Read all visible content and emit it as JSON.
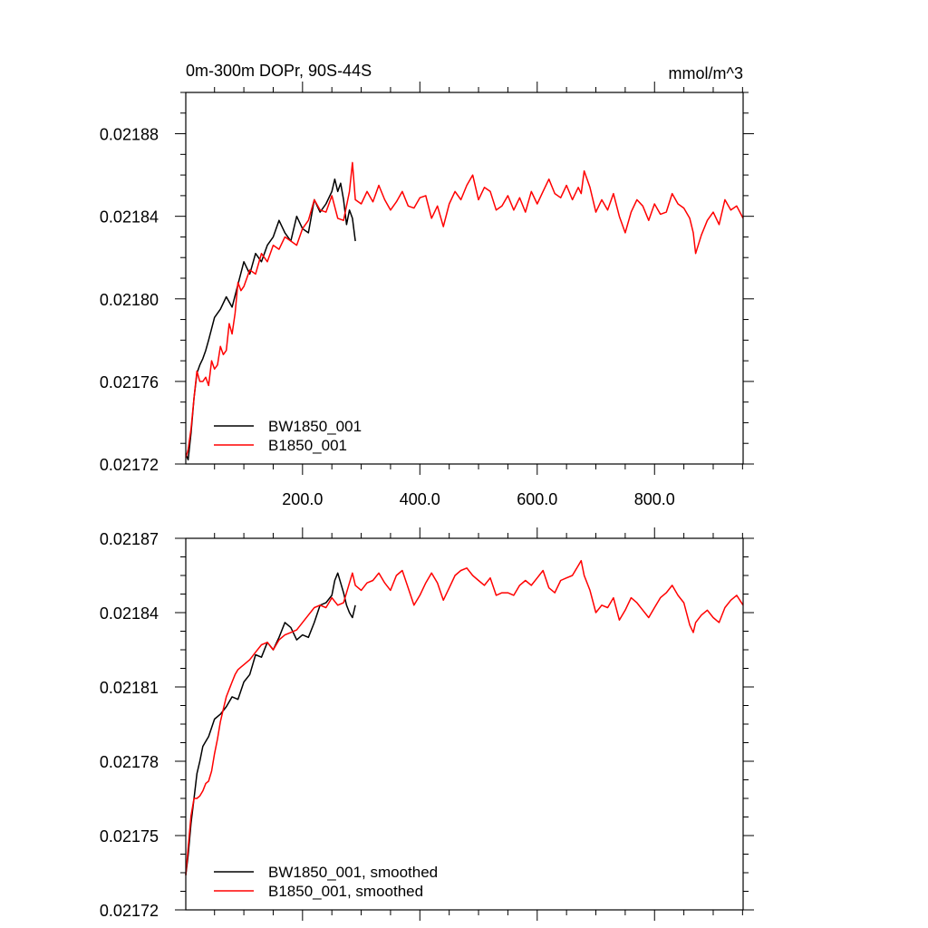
{
  "chart_data": [
    {
      "type": "line",
      "title": "0m-300m DOPr, 90S-44S",
      "units": "mmol/m^3",
      "xlim": [
        1,
        951
      ],
      "ylim": [
        0.02172,
        0.0219
      ],
      "x_ticks": [
        200,
        400,
        600,
        800
      ],
      "x_tick_labels": [
        "200.0",
        "400.0",
        "600.0",
        "800.0"
      ],
      "y_ticks": [
        0.02172,
        0.02176,
        0.0218,
        0.02184,
        0.02188
      ],
      "y_tick_labels": [
        "0.02172",
        "0.02176",
        "0.02180",
        "0.02184",
        "0.02188"
      ],
      "legend_position": "bottom-left",
      "series": [
        {
          "name": "BW1850_001",
          "color": "#000000",
          "x": [
            1,
            5,
            10,
            15,
            20,
            25,
            30,
            35,
            40,
            50,
            60,
            70,
            80,
            90,
            100,
            110,
            120,
            130,
            140,
            150,
            160,
            170,
            180,
            190,
            200,
            210,
            220,
            230,
            240,
            250,
            255,
            260,
            265,
            270,
            275,
            280,
            285,
            290
          ],
          "y": [
            0.021725,
            0.021722,
            0.021735,
            0.021752,
            0.021764,
            0.021768,
            0.021771,
            0.021775,
            0.02178,
            0.021791,
            0.021795,
            0.021801,
            0.021796,
            0.021807,
            0.021818,
            0.021812,
            0.021822,
            0.021818,
            0.021826,
            0.02183,
            0.021838,
            0.021832,
            0.021828,
            0.02184,
            0.021834,
            0.021832,
            0.021848,
            0.021842,
            0.021846,
            0.021852,
            0.021858,
            0.021852,
            0.021856,
            0.021848,
            0.021836,
            0.021843,
            0.021839,
            0.021828
          ]
        },
        {
          "name": "B1850_001",
          "color": "#ff0000",
          "x": [
            1,
            5,
            10,
            15,
            20,
            25,
            30,
            35,
            40,
            45,
            50,
            55,
            60,
            65,
            70,
            75,
            80,
            85,
            90,
            95,
            100,
            110,
            120,
            130,
            140,
            150,
            160,
            170,
            180,
            190,
            200,
            210,
            220,
            230,
            240,
            250,
            260,
            270,
            280,
            285,
            290,
            300,
            310,
            320,
            330,
            340,
            350,
            360,
            370,
            380,
            390,
            400,
            410,
            420,
            430,
            440,
            450,
            460,
            470,
            480,
            490,
            500,
            510,
            520,
            530,
            540,
            550,
            560,
            570,
            580,
            590,
            600,
            610,
            620,
            630,
            640,
            650,
            660,
            670,
            675,
            680,
            690,
            700,
            710,
            720,
            730,
            740,
            750,
            760,
            770,
            780,
            790,
            800,
            810,
            820,
            830,
            840,
            850,
            860,
            866,
            870,
            880,
            890,
            900,
            910,
            920,
            930,
            940,
            951
          ],
          "y": [
            0.021723,
            0.021727,
            0.021737,
            0.021752,
            0.021765,
            0.02176,
            0.02176,
            0.021762,
            0.021758,
            0.02177,
            0.021766,
            0.021768,
            0.021777,
            0.021773,
            0.021775,
            0.021788,
            0.021783,
            0.021793,
            0.021808,
            0.021804,
            0.021806,
            0.021814,
            0.021812,
            0.021822,
            0.021818,
            0.021826,
            0.021824,
            0.02183,
            0.021828,
            0.021826,
            0.021834,
            0.021838,
            0.021848,
            0.021843,
            0.021842,
            0.02185,
            0.021839,
            0.021838,
            0.021852,
            0.021866,
            0.021848,
            0.021846,
            0.021852,
            0.021847,
            0.021855,
            0.021848,
            0.021843,
            0.021847,
            0.021852,
            0.021845,
            0.021844,
            0.021849,
            0.02185,
            0.021839,
            0.021845,
            0.021835,
            0.021846,
            0.021852,
            0.021848,
            0.021855,
            0.02186,
            0.021848,
            0.021854,
            0.021852,
            0.021843,
            0.021845,
            0.02185,
            0.021843,
            0.021849,
            0.021842,
            0.021852,
            0.021846,
            0.021852,
            0.021858,
            0.021851,
            0.021849,
            0.021855,
            0.021848,
            0.021854,
            0.021851,
            0.021862,
            0.021854,
            0.021842,
            0.021848,
            0.021843,
            0.021851,
            0.02184,
            0.021832,
            0.021842,
            0.021848,
            0.021845,
            0.021838,
            0.021846,
            0.021841,
            0.021842,
            0.021851,
            0.021846,
            0.021844,
            0.021839,
            0.021832,
            0.021822,
            0.021831,
            0.021838,
            0.021842,
            0.021836,
            0.021848,
            0.021843,
            0.021845,
            0.021839
          ]
        }
      ]
    },
    {
      "type": "line",
      "xlim": [
        1,
        951
      ],
      "ylim": [
        0.02172,
        0.02187
      ],
      "x_ticks": [
        200,
        400,
        600,
        800
      ],
      "y_ticks": [
        0.02172,
        0.02175,
        0.02178,
        0.02181,
        0.02184,
        0.02187
      ],
      "y_tick_labels": [
        "0.02172",
        "0.02175",
        "0.02178",
        "0.02181",
        "0.02184",
        "0.02187"
      ],
      "legend_position": "bottom-left",
      "series": [
        {
          "name": "BW1850_001, smoothed",
          "color": "#000000",
          "x": [
            1,
            5,
            10,
            15,
            20,
            25,
            30,
            35,
            40,
            50,
            60,
            70,
            80,
            90,
            100,
            110,
            120,
            130,
            140,
            150,
            160,
            170,
            180,
            190,
            200,
            210,
            220,
            230,
            240,
            250,
            255,
            260,
            265,
            270,
            275,
            280,
            285,
            290
          ],
          "y": [
            0.021734,
            0.021742,
            0.021755,
            0.021765,
            0.021775,
            0.02178,
            0.021786,
            0.021788,
            0.02179,
            0.021797,
            0.021799,
            0.021802,
            0.021806,
            0.021805,
            0.021812,
            0.021815,
            0.021823,
            0.021822,
            0.021828,
            0.021825,
            0.02183,
            0.021836,
            0.021834,
            0.021829,
            0.021831,
            0.02183,
            0.021836,
            0.021843,
            0.021844,
            0.021847,
            0.021853,
            0.021856,
            0.021852,
            0.021848,
            0.021843,
            0.02184,
            0.021838,
            0.021843
          ]
        },
        {
          "name": "B1850_001, smoothed",
          "color": "#ff0000",
          "x": [
            1,
            5,
            10,
            15,
            20,
            25,
            30,
            35,
            40,
            45,
            50,
            55,
            60,
            65,
            70,
            75,
            80,
            85,
            90,
            95,
            100,
            110,
            120,
            130,
            140,
            150,
            160,
            170,
            180,
            190,
            200,
            210,
            220,
            230,
            240,
            250,
            260,
            270,
            280,
            285,
            290,
            300,
            310,
            320,
            330,
            340,
            350,
            360,
            370,
            380,
            390,
            400,
            410,
            420,
            430,
            440,
            450,
            460,
            470,
            480,
            490,
            500,
            510,
            520,
            530,
            540,
            550,
            560,
            570,
            580,
            590,
            600,
            610,
            620,
            630,
            640,
            650,
            660,
            670,
            675,
            680,
            690,
            700,
            710,
            720,
            730,
            740,
            750,
            760,
            770,
            780,
            790,
            800,
            810,
            820,
            830,
            840,
            850,
            860,
            866,
            870,
            880,
            890,
            900,
            910,
            920,
            930,
            940,
            951
          ],
          "y": [
            0.021734,
            0.021745,
            0.021758,
            0.021765,
            0.021765,
            0.021766,
            0.021768,
            0.021771,
            0.021772,
            0.021776,
            0.021783,
            0.021789,
            0.021796,
            0.021801,
            0.021806,
            0.021809,
            0.021812,
            0.021815,
            0.021817,
            0.021818,
            0.021819,
            0.021821,
            0.021824,
            0.021827,
            0.021828,
            0.021825,
            0.021829,
            0.021831,
            0.021832,
            0.021833,
            0.021836,
            0.021839,
            0.021842,
            0.021843,
            0.021842,
            0.021846,
            0.021843,
            0.021844,
            0.021852,
            0.021856,
            0.021851,
            0.021849,
            0.021852,
            0.021853,
            0.021856,
            0.021852,
            0.021849,
            0.021855,
            0.021857,
            0.02185,
            0.021843,
            0.021847,
            0.021852,
            0.021856,
            0.021852,
            0.021845,
            0.02185,
            0.021855,
            0.021857,
            0.021858,
            0.021855,
            0.021853,
            0.021851,
            0.021854,
            0.021847,
            0.021848,
            0.021848,
            0.021847,
            0.021851,
            0.021853,
            0.021851,
            0.021854,
            0.021857,
            0.02185,
            0.021848,
            0.021853,
            0.021854,
            0.021855,
            0.021859,
            0.021861,
            0.021855,
            0.021849,
            0.02184,
            0.021843,
            0.021842,
            0.021846,
            0.021837,
            0.021841,
            0.021846,
            0.021844,
            0.021841,
            0.021838,
            0.021842,
            0.021846,
            0.021848,
            0.021851,
            0.021847,
            0.021844,
            0.021835,
            0.021832,
            0.021836,
            0.021839,
            0.021841,
            0.021838,
            0.021836,
            0.021842,
            0.021845,
            0.021847,
            0.021843
          ]
        }
      ]
    }
  ]
}
